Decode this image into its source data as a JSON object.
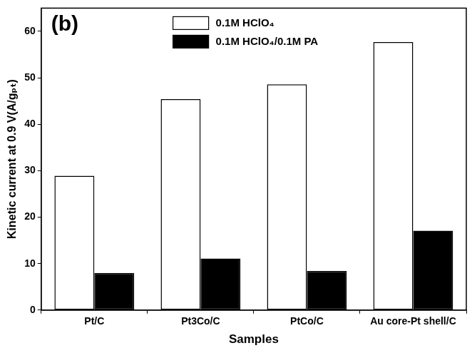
{
  "chart_data": {
    "type": "bar",
    "annotations": [
      "(b)"
    ],
    "x_label": "Samples",
    "y_label": "Kinetic current at 0.9 V(A/gₚₜ)",
    "categories": [
      "Pt/C",
      "Pt3Co/C",
      "PtCo/C",
      "Au core-Pt shell/C"
    ],
    "series": [
      {
        "name": "0.1M HClO₄",
        "color": "#ffffff",
        "values": [
          28.9,
          45.4,
          48.6,
          57.7
        ]
      },
      {
        "name": "0.1M HClO₄/0.1M PA",
        "color": "#000000",
        "values": [
          8.0,
          11.1,
          8.4,
          17.1
        ]
      }
    ],
    "ylim": [
      0,
      65
    ],
    "yticks": [
      0,
      10,
      20,
      30,
      40,
      50,
      60
    ],
    "grid": false,
    "legend": "top"
  }
}
